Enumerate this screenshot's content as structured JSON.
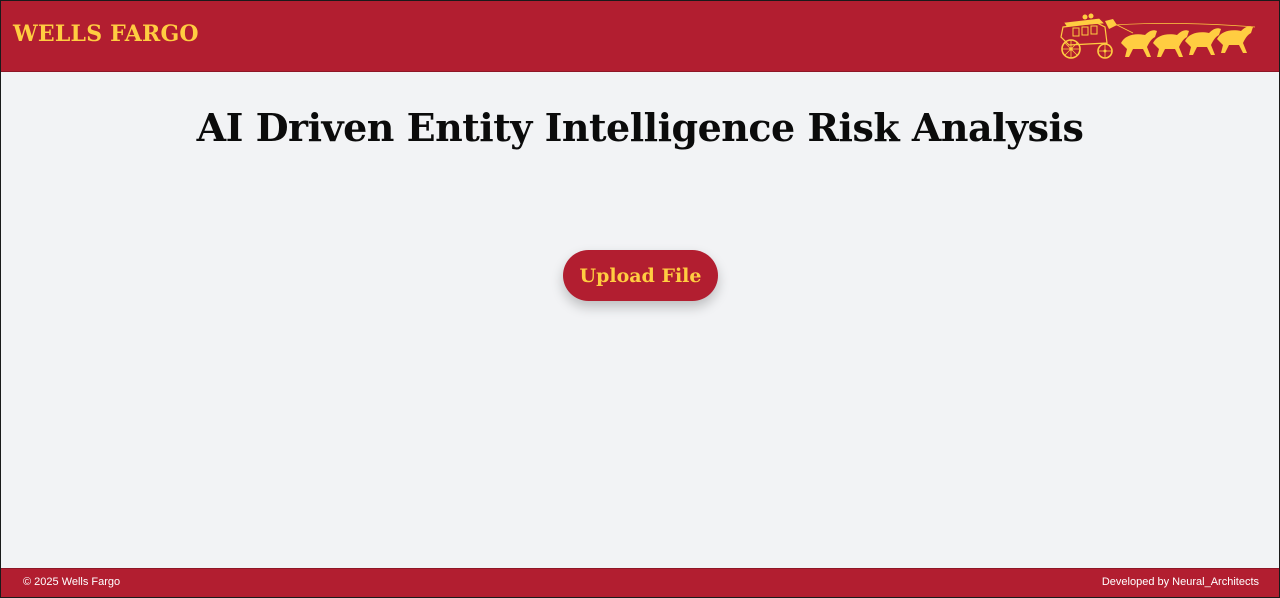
{
  "header": {
    "brand": "WELLS FARGO",
    "logo_icon": "stagecoach-icon",
    "background_color": "#b21e30",
    "accent_color": "#ffcd41"
  },
  "main": {
    "title": "AI Driven Entity Intelligence Risk Analysis",
    "upload_label": "Upload File"
  },
  "footer": {
    "copyright": "© 2025 Wells Fargo",
    "credit": "Developed by Neural_Architects"
  }
}
